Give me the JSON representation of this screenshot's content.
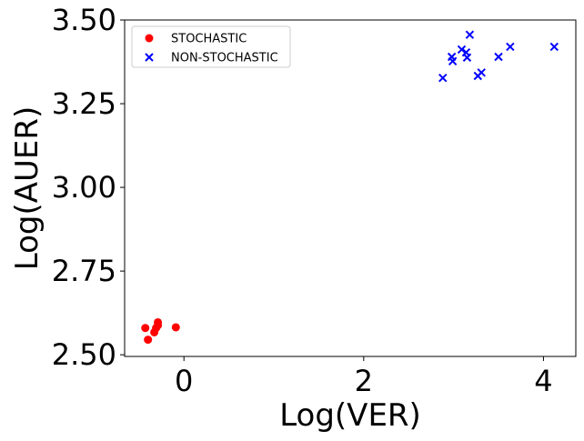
{
  "chart_data": {
    "type": "scatter",
    "xlabel": "Log(VER)",
    "ylabel": "Log(AUER)",
    "xlim": [
      -0.66,
      4.36
    ],
    "ylim": [
      2.495,
      3.5
    ],
    "xticks": [
      0,
      2,
      4
    ],
    "xtick_labels": [
      "0",
      "2",
      "4"
    ],
    "yticks": [
      2.5,
      2.75,
      3.0,
      3.25,
      3.5
    ],
    "ytick_labels": [
      "2.50",
      "2.75",
      "3.00",
      "3.25",
      "3.50"
    ],
    "grid": false,
    "legend_position": "top-left",
    "series": [
      {
        "name": "STOCHASTIC",
        "marker": "circle",
        "color": "#ff0000",
        "points": [
          [
            -0.43,
            2.58
          ],
          [
            -0.4,
            2.545
          ],
          [
            -0.33,
            2.567
          ],
          [
            -0.31,
            2.58
          ],
          [
            -0.29,
            2.588
          ],
          [
            -0.29,
            2.597
          ],
          [
            -0.09,
            2.582
          ]
        ]
      },
      {
        "name": "NON-STOCHASTIC",
        "marker": "x",
        "color": "#0000ff",
        "points": [
          [
            2.88,
            3.327
          ],
          [
            2.98,
            3.39
          ],
          [
            2.99,
            3.377
          ],
          [
            3.09,
            3.412
          ],
          [
            3.14,
            3.403
          ],
          [
            3.15,
            3.388
          ],
          [
            3.18,
            3.456
          ],
          [
            3.27,
            3.333
          ],
          [
            3.31,
            3.343
          ],
          [
            3.5,
            3.39
          ],
          [
            3.63,
            3.42
          ],
          [
            4.12,
            3.42
          ]
        ]
      }
    ]
  }
}
